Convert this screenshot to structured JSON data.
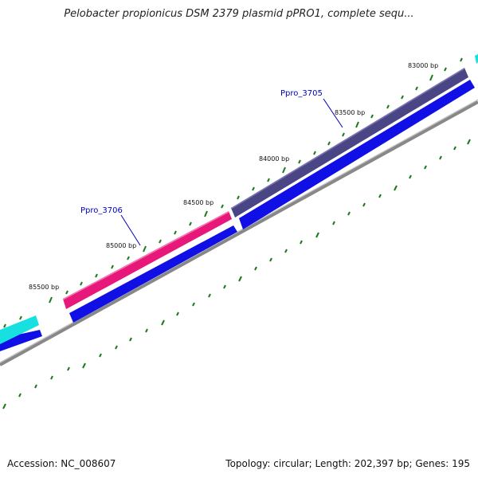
{
  "title": "Pelobacter propionicus DSM 2379 plasmid pPRO1, complete sequ...",
  "bp_labels": [
    "83000 bp",
    "83500 bp",
    "84000 bp",
    "84500 bp",
    "85000 bp",
    "85500 bp"
  ],
  "genes": [
    {
      "label": "Ppro_3705",
      "color": "#4a4585"
    },
    {
      "label": "Ppro_3706",
      "color": "#e8187a"
    }
  ],
  "colors": {
    "cds_strand": "#1010e6",
    "neighbor_gene": "#19e0e0",
    "backbone": "#888888",
    "tick": "#1a7a1a"
  },
  "footer": {
    "accession": "Accession: NC_008607",
    "summary": "Topology: circular; Length: 202,397 bp; Genes: 195"
  }
}
